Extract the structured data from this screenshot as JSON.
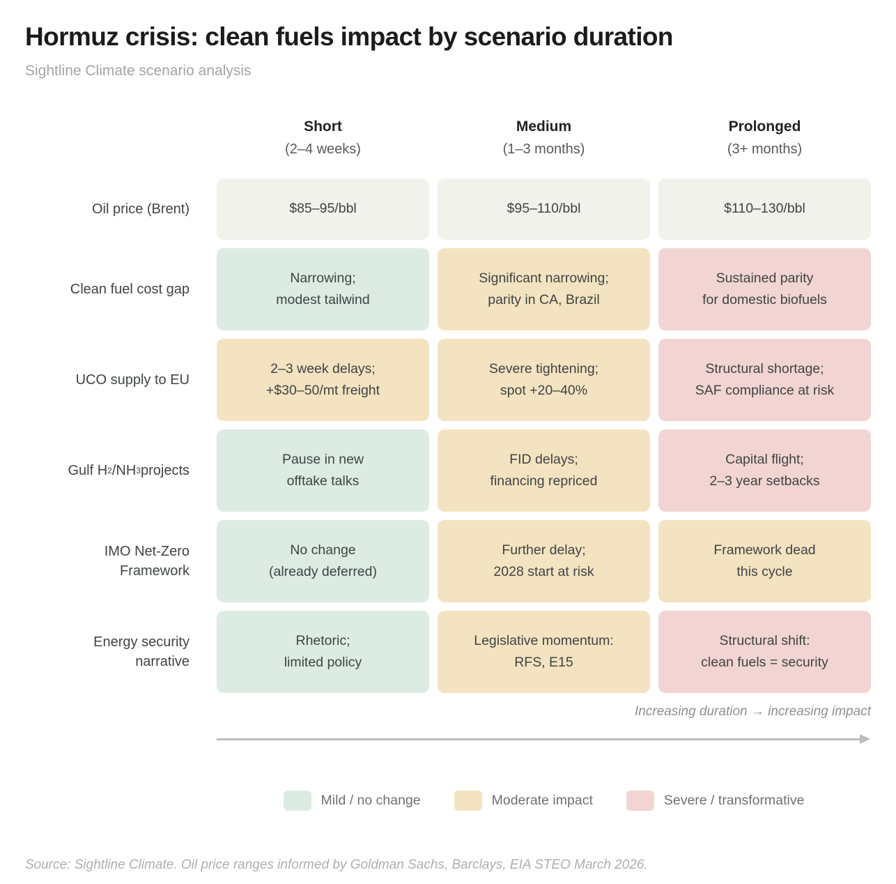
{
  "title": "Hormuz crisis: clean fuels impact by scenario duration",
  "subtitle": "Sightline Climate scenario analysis",
  "colors": {
    "neutral": "#f1f2ec",
    "mild": "#ddece3",
    "moderate": "#f4e3c1",
    "severe": "#f2d5d2",
    "arrow": "#bcbcbc"
  },
  "chart_data": {
    "type": "table",
    "title": "Hormuz crisis: clean fuels impact by scenario duration",
    "columns": [
      {
        "label": "Short",
        "sublabel": "(2–4 weeks)"
      },
      {
        "label": "Medium",
        "sublabel": "(1–3 months)"
      },
      {
        "label": "Prolonged",
        "sublabel": "(3+ months)"
      }
    ],
    "rows": [
      {
        "label": "Oil price (Brent)",
        "cells": [
          {
            "text": "$85–95/bbl",
            "severity": "neutral",
            "color": "#f1f2ec"
          },
          {
            "text": "$95–110/bbl",
            "severity": "neutral",
            "color": "#f1f2ec"
          },
          {
            "text": "$110–130/bbl",
            "severity": "neutral",
            "color": "#f1f2ec"
          }
        ]
      },
      {
        "label": "Clean fuel cost gap",
        "cells": [
          {
            "text": "Narrowing;\nmodest tailwind",
            "severity": "mild",
            "color": "#ddece3"
          },
          {
            "text": "Significant narrowing;\nparity in CA, Brazil",
            "severity": "moderate",
            "color": "#f4e3c1"
          },
          {
            "text": "Sustained parity\nfor domestic biofuels",
            "severity": "severe",
            "color": "#f2d5d2"
          }
        ]
      },
      {
        "label": "UCO supply to EU",
        "cells": [
          {
            "text": "2–3 week delays;\n+$30–50/mt freight",
            "severity": "moderate",
            "color": "#f4e3c1"
          },
          {
            "text": "Severe tightening;\nspot +20–40%",
            "severity": "moderate",
            "color": "#f4e3c1"
          },
          {
            "text": "Structural shortage;\nSAF compliance at risk",
            "severity": "severe",
            "color": "#f2d5d2"
          }
        ]
      },
      {
        "label_parts": [
          "Gulf H",
          "2",
          "/NH",
          "3",
          " projects"
        ],
        "cells": [
          {
            "text": "Pause in new\nofftake talks",
            "severity": "mild",
            "color": "#ddece3"
          },
          {
            "text": "FID delays;\nfinancing repriced",
            "severity": "moderate",
            "color": "#f4e3c1"
          },
          {
            "text": "Capital flight;\n2–3 year setbacks",
            "severity": "severe",
            "color": "#f2d5d2"
          }
        ]
      },
      {
        "label": "IMO Net-Zero\nFramework",
        "cells": [
          {
            "text": "No change\n(already deferred)",
            "severity": "mild",
            "color": "#ddece3"
          },
          {
            "text": "Further delay;\n2028 start at risk",
            "severity": "moderate",
            "color": "#f4e3c1"
          },
          {
            "text": "Framework dead\nthis cycle",
            "severity": "moderate",
            "color": "#f4e3c1"
          }
        ]
      },
      {
        "label": "Energy security\nnarrative",
        "cells": [
          {
            "text": "Rhetoric;\nlimited policy",
            "severity": "mild",
            "color": "#ddece3"
          },
          {
            "text": "Legislative momentum:\nRFS, E15",
            "severity": "moderate",
            "color": "#f4e3c1"
          },
          {
            "text": "Structural shift:\nclean fuels = security",
            "severity": "severe",
            "color": "#f2d5d2"
          }
        ]
      }
    ]
  },
  "annotation": "Increasing duration → increasing impact",
  "legend": [
    {
      "label": "Mild / no change",
      "color": "#ddece3"
    },
    {
      "label": "Moderate impact",
      "color": "#f4e3c1"
    },
    {
      "label": "Severe / transformative",
      "color": "#f2d5d2"
    }
  ],
  "source": "Source: Sightline Climate. Oil price ranges informed by Goldman Sachs, Barclays, EIA STEO March 2026."
}
